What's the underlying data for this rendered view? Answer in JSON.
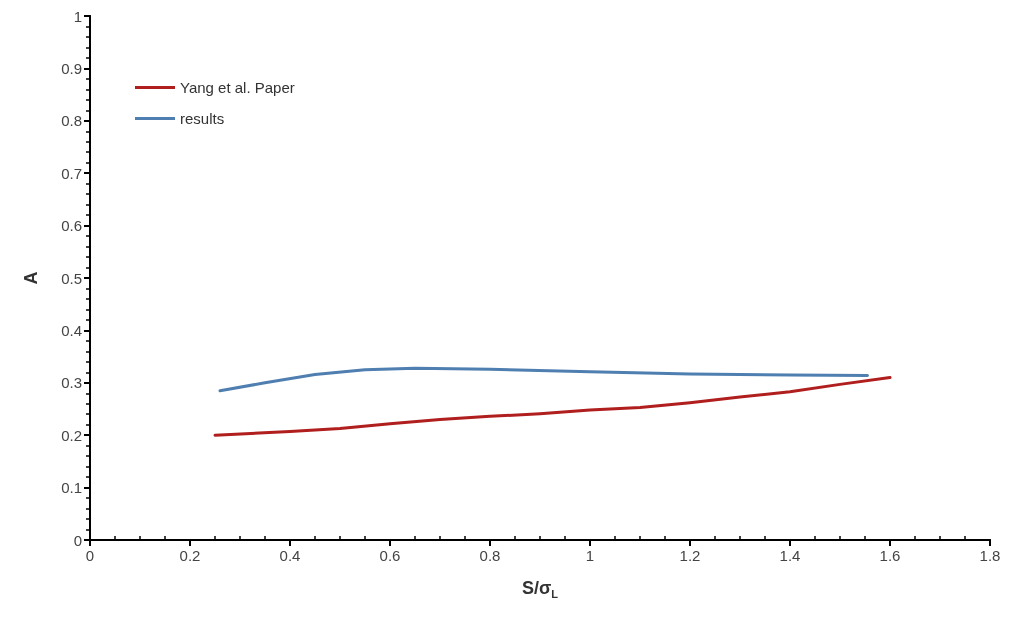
{
  "chart_data": {
    "type": "line",
    "xlabel": "S/σ$_{L}$",
    "ylabel": "A",
    "legend": "top left",
    "grid": false,
    "marker": "none",
    "line_style": "solid",
    "xlim": [
      0,
      1.8
    ],
    "xticks": [
      0,
      0.2,
      0.4,
      0.6,
      0.8,
      1,
      1.2,
      1.4,
      1.6,
      1.8
    ],
    "ylim": [
      0,
      1
    ],
    "yticks": [
      0,
      0.1,
      0.2,
      0.3,
      0.4,
      0.5,
      0.6,
      0.7,
      0.8,
      0.9,
      1
    ],
    "series": [
      {
        "name": "Yang et al. Paper",
        "color": "#b01e1e",
        "x": [
          0.25,
          0.4,
          0.5,
          0.6,
          0.7,
          0.8,
          0.9,
          1.0,
          1.1,
          1.2,
          1.3,
          1.4,
          1.5,
          1.6
        ],
        "values": [
          0.2,
          0.207,
          0.213,
          0.222,
          0.23,
          0.236,
          0.241,
          0.248,
          0.253,
          0.262,
          0.273,
          0.283,
          0.297,
          0.31
        ]
      },
      {
        "name": "results",
        "color": "#4f7fb0",
        "x": [
          0.26,
          0.35,
          0.45,
          0.55,
          0.65,
          0.8,
          1.0,
          1.2,
          1.4,
          1.555
        ],
        "values": [
          0.285,
          0.3,
          0.316,
          0.325,
          0.328,
          0.326,
          0.321,
          0.317,
          0.315,
          0.314
        ]
      }
    ]
  }
}
